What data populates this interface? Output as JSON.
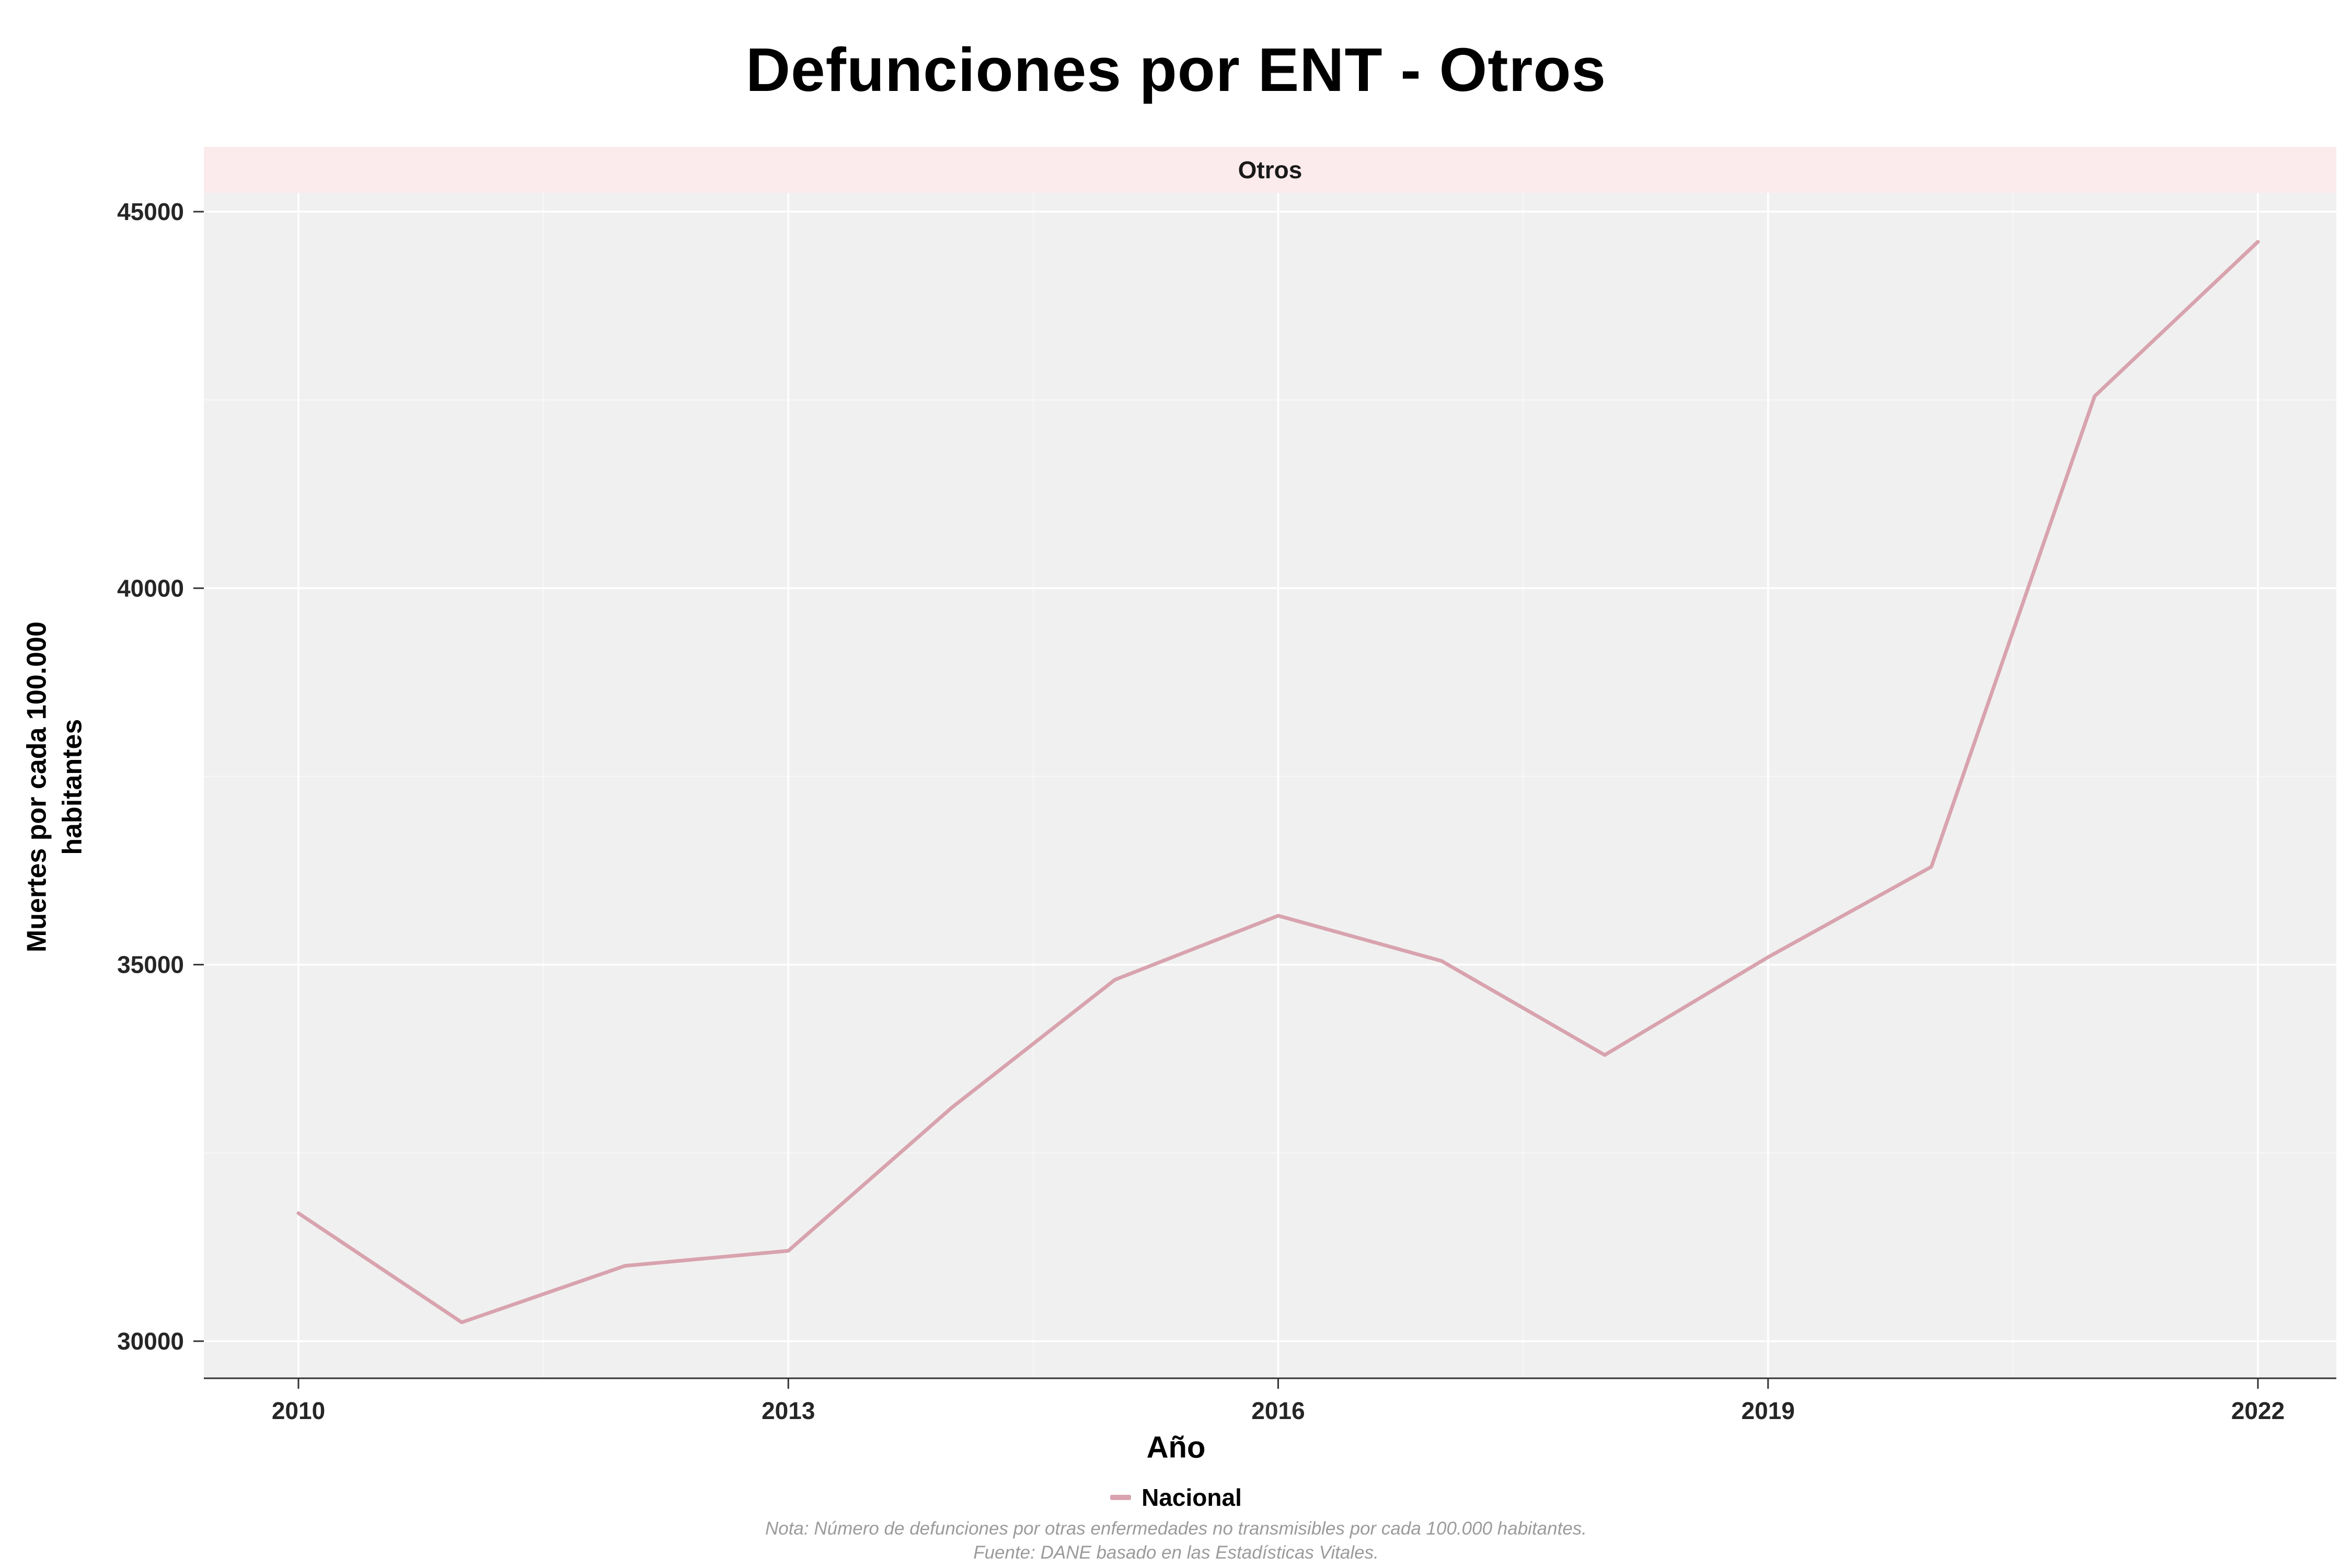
{
  "chart_data": {
    "type": "line",
    "title": "Defunciones por ENT - Otros",
    "facet_label": "Otros",
    "xlabel": "Año",
    "ylabel": "Muertes por cada 100.000 habitantes",
    "x": [
      2010,
      2011,
      2012,
      2013,
      2014,
      2015,
      2016,
      2017,
      2018,
      2019,
      2020,
      2021,
      2022
    ],
    "series": [
      {
        "name": "Nacional",
        "color": "#d8a3ae",
        "values": [
          31700,
          30250,
          31000,
          31200,
          33100,
          34800,
          35650,
          35050,
          33800,
          35100,
          36300,
          42550,
          44600
        ]
      }
    ],
    "xticks": [
      2010,
      2013,
      2016,
      2019,
      2022
    ],
    "yticks": [
      30000,
      35000,
      40000,
      45000
    ],
    "ylim": [
      29500,
      45260
    ],
    "grid": true,
    "legend_position": "bottom",
    "panel_bg": "#f0f0f0",
    "strip_bg": "#fcebed",
    "line_color": "#d8a3ae",
    "notes": [
      "Nota: Número de defunciones por otras enfermedades no transmisibles por cada 100.000 habitantes.",
      "Fuente: DANE basado en las Estadísticas Vitales."
    ]
  }
}
